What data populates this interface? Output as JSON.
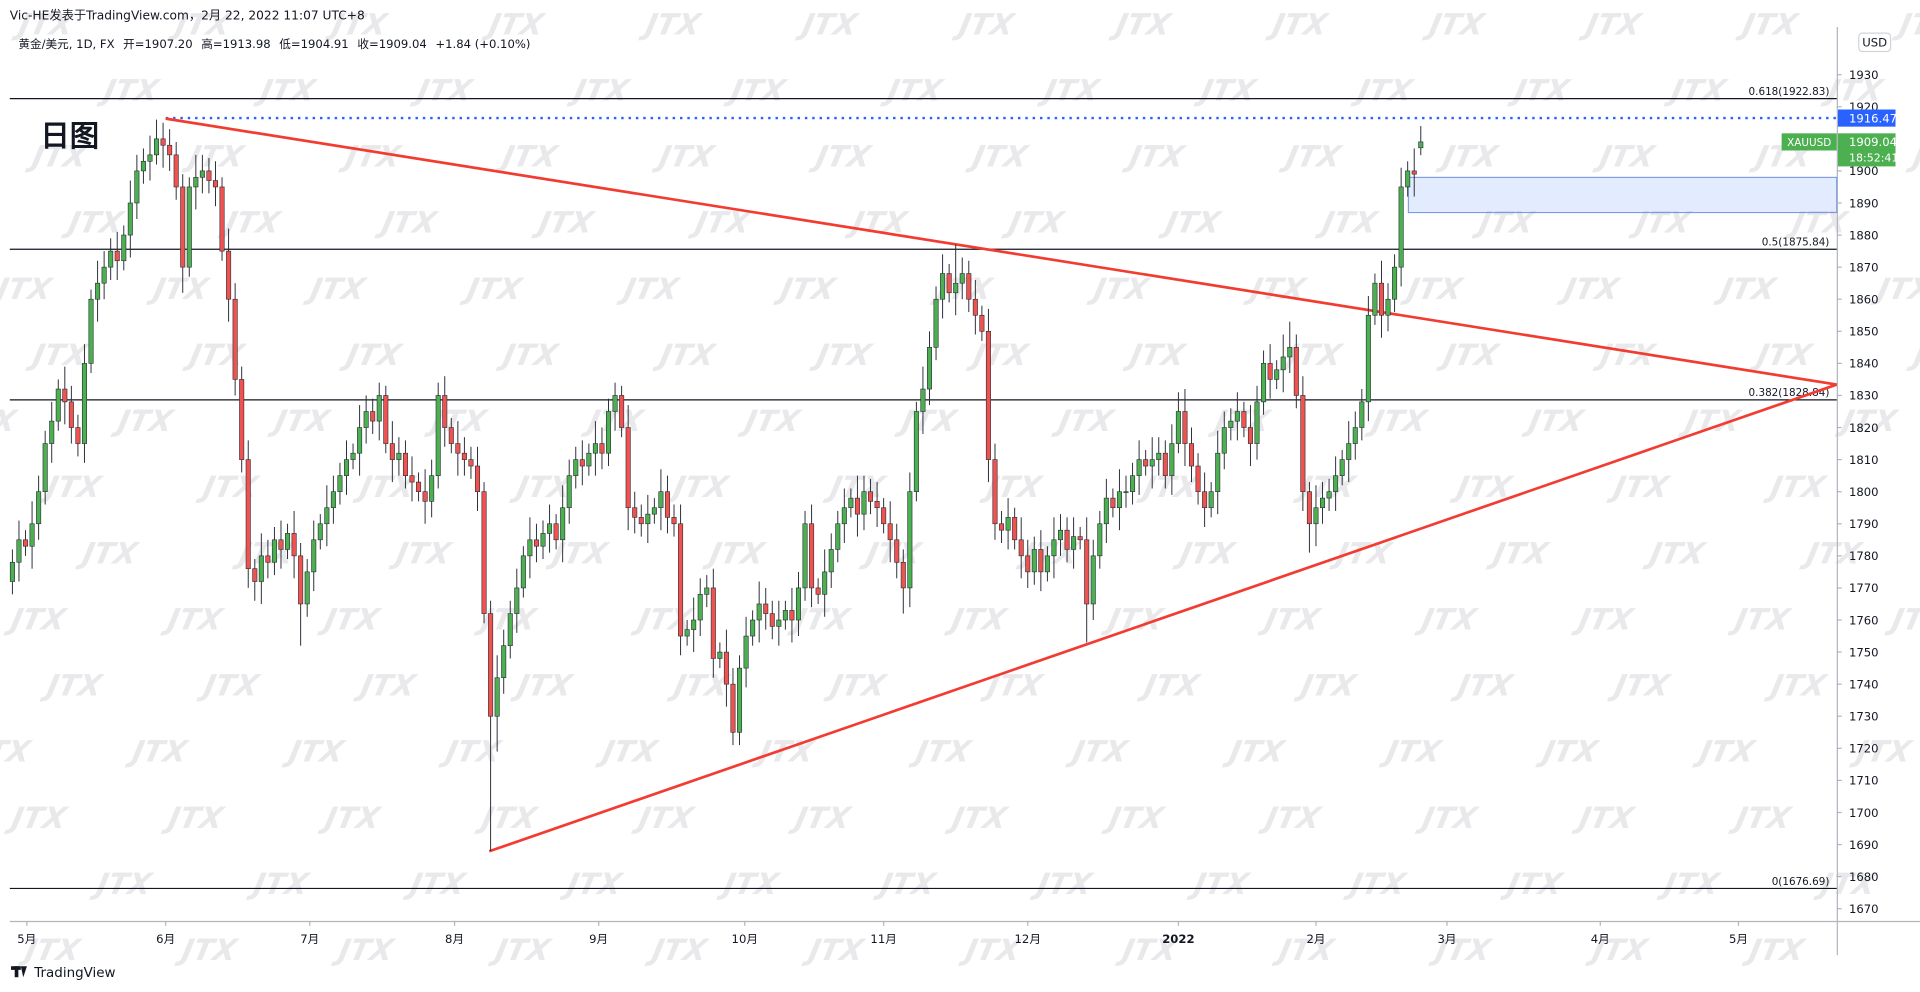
{
  "header": "Vic-HE发表于TradingView.com，2月 22, 2022 11:07 UTC+8",
  "chart_data": {
    "type": "candlestick",
    "legend": {
      "symbol": "黄金/美元, 1D, FX",
      "open": "开=1907.20",
      "high": "高=1913.98",
      "low": "低=1904.91",
      "close": "收=1909.04",
      "change": "+1.84 (+0.10%)"
    },
    "annotation": "日图",
    "up_color": "#4caf50",
    "down_color": "#ef5350",
    "ohlc": [
      [
        1772,
        1782,
        1768,
        1778
      ],
      [
        1778,
        1791,
        1772,
        1785
      ],
      [
        1785,
        1788,
        1780,
        1783
      ],
      [
        1783,
        1797,
        1776,
        1790
      ],
      [
        1790,
        1805,
        1785,
        1800
      ],
      [
        1800,
        1819,
        1796,
        1815
      ],
      [
        1815,
        1828,
        1809,
        1822
      ],
      [
        1822,
        1835,
        1819,
        1832
      ],
      [
        1832,
        1839,
        1821,
        1828
      ],
      [
        1828,
        1833,
        1815,
        1820
      ],
      [
        1820,
        1824,
        1811,
        1815
      ],
      [
        1815,
        1846,
        1809,
        1840
      ],
      [
        1840,
        1863,
        1837,
        1860
      ],
      [
        1860,
        1872,
        1853,
        1865
      ],
      [
        1865,
        1875,
        1860,
        1870
      ],
      [
        1870,
        1879,
        1866,
        1875
      ],
      [
        1875,
        1881,
        1866,
        1872
      ],
      [
        1872,
        1883,
        1869,
        1880
      ],
      [
        1880,
        1897,
        1873,
        1890
      ],
      [
        1890,
        1905,
        1885,
        1900
      ],
      [
        1900,
        1907,
        1896,
        1903
      ],
      [
        1903,
        1911,
        1897,
        1905
      ],
      [
        1905,
        1916,
        1902,
        1910
      ],
      [
        1910,
        1915,
        1901,
        1908
      ],
      [
        1908,
        1913,
        1900,
        1905
      ],
      [
        1905,
        1909,
        1891,
        1895
      ],
      [
        1895,
        1899,
        1862,
        1870
      ],
      [
        1870,
        1898,
        1867,
        1895
      ],
      [
        1895,
        1905,
        1888,
        1898
      ],
      [
        1898,
        1905,
        1893,
        1900
      ],
      [
        1900,
        1904,
        1893,
        1897
      ],
      [
        1897,
        1903,
        1889,
        1895
      ],
      [
        1895,
        1898,
        1872,
        1875
      ],
      [
        1875,
        1882,
        1853,
        1860
      ],
      [
        1860,
        1865,
        1830,
        1835
      ],
      [
        1835,
        1839,
        1806,
        1810
      ],
      [
        1810,
        1816,
        1770,
        1776
      ],
      [
        1776,
        1779,
        1766,
        1772
      ],
      [
        1772,
        1787,
        1765,
        1780
      ],
      [
        1780,
        1785,
        1773,
        1778
      ],
      [
        1778,
        1789,
        1774,
        1785
      ],
      [
        1785,
        1791,
        1776,
        1782
      ],
      [
        1782,
        1790,
        1779,
        1787
      ],
      [
        1787,
        1794,
        1773,
        1780
      ],
      [
        1780,
        1784,
        1752,
        1765
      ],
      [
        1765,
        1779,
        1761,
        1775
      ],
      [
        1775,
        1791,
        1769,
        1785
      ],
      [
        1785,
        1793,
        1782,
        1790
      ],
      [
        1790,
        1802,
        1783,
        1795
      ],
      [
        1795,
        1805,
        1790,
        1800
      ],
      [
        1800,
        1809,
        1796,
        1805
      ],
      [
        1805,
        1816,
        1799,
        1810
      ],
      [
        1810,
        1815,
        1807,
        1812
      ],
      [
        1812,
        1827,
        1805,
        1820
      ],
      [
        1820,
        1830,
        1815,
        1825
      ],
      [
        1825,
        1829,
        1818,
        1822
      ],
      [
        1822,
        1834,
        1816,
        1830
      ],
      [
        1830,
        1833,
        1812,
        1815
      ],
      [
        1815,
        1822,
        1803,
        1810
      ],
      [
        1810,
        1817,
        1805,
        1812
      ],
      [
        1812,
        1816,
        1801,
        1805
      ],
      [
        1805,
        1811,
        1797,
        1803
      ],
      [
        1803,
        1806,
        1797,
        1800
      ],
      [
        1800,
        1807,
        1790,
        1797
      ],
      [
        1797,
        1810,
        1792,
        1805
      ],
      [
        1805,
        1834,
        1801,
        1830
      ],
      [
        1830,
        1836,
        1814,
        1820
      ],
      [
        1820,
        1823,
        1812,
        1815
      ],
      [
        1815,
        1822,
        1805,
        1812
      ],
      [
        1812,
        1817,
        1805,
        1810
      ],
      [
        1810,
        1814,
        1804,
        1808
      ],
      [
        1808,
        1814,
        1794,
        1800
      ],
      [
        1800,
        1803,
        1759,
        1762
      ],
      [
        1762,
        1766,
        1688,
        1730
      ],
      [
        1730,
        1749,
        1719,
        1742
      ],
      [
        1742,
        1757,
        1737,
        1752
      ],
      [
        1752,
        1766,
        1748,
        1762
      ],
      [
        1762,
        1776,
        1756,
        1770
      ],
      [
        1770,
        1783,
        1767,
        1780
      ],
      [
        1780,
        1792,
        1773,
        1785
      ],
      [
        1785,
        1790,
        1778,
        1783
      ],
      [
        1783,
        1791,
        1779,
        1787
      ],
      [
        1787,
        1796,
        1781,
        1790
      ],
      [
        1790,
        1793,
        1782,
        1785
      ],
      [
        1785,
        1802,
        1778,
        1795
      ],
      [
        1795,
        1810,
        1790,
        1805
      ],
      [
        1805,
        1814,
        1801,
        1810
      ],
      [
        1810,
        1816,
        1802,
        1808
      ],
      [
        1808,
        1815,
        1805,
        1812
      ],
      [
        1812,
        1822,
        1805,
        1815
      ],
      [
        1815,
        1820,
        1807,
        1812
      ],
      [
        1812,
        1829,
        1808,
        1825
      ],
      [
        1825,
        1834,
        1819,
        1830
      ],
      [
        1830,
        1833,
        1817,
        1820
      ],
      [
        1820,
        1827,
        1788,
        1795
      ],
      [
        1795,
        1800,
        1787,
        1792
      ],
      [
        1792,
        1796,
        1786,
        1790
      ],
      [
        1790,
        1799,
        1784,
        1793
      ],
      [
        1793,
        1798,
        1790,
        1795
      ],
      [
        1795,
        1807,
        1788,
        1800
      ],
      [
        1800,
        1805,
        1787,
        1792
      ],
      [
        1792,
        1796,
        1786,
        1790
      ],
      [
        1790,
        1796,
        1749,
        1755
      ],
      [
        1755,
        1760,
        1752,
        1757
      ],
      [
        1757,
        1767,
        1750,
        1760
      ],
      [
        1760,
        1773,
        1755,
        1768
      ],
      [
        1768,
        1774,
        1764,
        1770
      ],
      [
        1770,
        1776,
        1742,
        1748
      ],
      [
        1748,
        1753,
        1745,
        1750
      ],
      [
        1750,
        1757,
        1733,
        1740
      ],
      [
        1740,
        1745,
        1721,
        1725
      ],
      [
        1725,
        1749,
        1721,
        1745
      ],
      [
        1745,
        1761,
        1739,
        1755
      ],
      [
        1755,
        1763,
        1752,
        1760
      ],
      [
        1760,
        1772,
        1753,
        1765
      ],
      [
        1765,
        1770,
        1757,
        1762
      ],
      [
        1762,
        1766,
        1754,
        1758
      ],
      [
        1758,
        1766,
        1752,
        1760
      ],
      [
        1760,
        1766,
        1757,
        1763
      ],
      [
        1763,
        1770,
        1753,
        1760
      ],
      [
        1760,
        1775,
        1755,
        1770
      ],
      [
        1770,
        1794,
        1766,
        1790
      ],
      [
        1790,
        1796,
        1764,
        1770
      ],
      [
        1770,
        1773,
        1765,
        1768
      ],
      [
        1768,
        1782,
        1761,
        1775
      ],
      [
        1775,
        1787,
        1770,
        1782
      ],
      [
        1782,
        1794,
        1778,
        1790
      ],
      [
        1790,
        1801,
        1784,
        1795
      ],
      [
        1795,
        1801,
        1792,
        1798
      ],
      [
        1798,
        1805,
        1786,
        1793
      ],
      [
        1793,
        1805,
        1788,
        1800
      ],
      [
        1800,
        1804,
        1793,
        1797
      ],
      [
        1797,
        1803,
        1789,
        1795
      ],
      [
        1795,
        1798,
        1787,
        1790
      ],
      [
        1790,
        1797,
        1778,
        1785
      ],
      [
        1785,
        1790,
        1773,
        1778
      ],
      [
        1778,
        1782,
        1762,
        1770
      ],
      [
        1770,
        1806,
        1764,
        1800
      ],
      [
        1800,
        1828,
        1797,
        1825
      ],
      [
        1825,
        1839,
        1818,
        1832
      ],
      [
        1832,
        1850,
        1827,
        1845
      ],
      [
        1845,
        1864,
        1841,
        1860
      ],
      [
        1860,
        1874,
        1854,
        1868
      ],
      [
        1868,
        1871,
        1859,
        1862
      ],
      [
        1862,
        1877,
        1855,
        1865
      ],
      [
        1865,
        1873,
        1860,
        1868
      ],
      [
        1868,
        1872,
        1856,
        1860
      ],
      [
        1860,
        1866,
        1849,
        1855
      ],
      [
        1855,
        1858,
        1847,
        1850
      ],
      [
        1850,
        1857,
        1803,
        1810
      ],
      [
        1810,
        1815,
        1785,
        1790
      ],
      [
        1790,
        1794,
        1784,
        1788
      ],
      [
        1788,
        1798,
        1782,
        1792
      ],
      [
        1792,
        1795,
        1782,
        1785
      ],
      [
        1785,
        1792,
        1773,
        1780
      ],
      [
        1780,
        1785,
        1770,
        1775
      ],
      [
        1775,
        1786,
        1771,
        1782
      ],
      [
        1782,
        1788,
        1769,
        1775
      ],
      [
        1775,
        1783,
        1772,
        1780
      ],
      [
        1780,
        1792,
        1773,
        1785
      ],
      [
        1785,
        1793,
        1780,
        1788
      ],
      [
        1788,
        1792,
        1778,
        1782
      ],
      [
        1782,
        1792,
        1776,
        1786
      ],
      [
        1786,
        1789,
        1782,
        1785
      ],
      [
        1785,
        1792,
        1753,
        1765
      ],
      [
        1765,
        1785,
        1760,
        1780
      ],
      [
        1780,
        1794,
        1776,
        1790
      ],
      [
        1790,
        1804,
        1784,
        1798
      ],
      [
        1798,
        1801,
        1792,
        1795
      ],
      [
        1795,
        1807,
        1788,
        1800
      ],
      [
        1800,
        1805,
        1795,
        1800
      ],
      [
        1800,
        1809,
        1796,
        1805
      ],
      [
        1805,
        1816,
        1799,
        1810
      ],
      [
        1810,
        1813,
        1805,
        1808
      ],
      [
        1808,
        1817,
        1801,
        1810
      ],
      [
        1810,
        1817,
        1805,
        1812
      ],
      [
        1812,
        1816,
        1801,
        1805
      ],
      [
        1805,
        1821,
        1799,
        1815
      ],
      [
        1815,
        1831,
        1812,
        1825
      ],
      [
        1825,
        1832,
        1808,
        1815
      ],
      [
        1815,
        1820,
        1803,
        1808
      ],
      [
        1808,
        1812,
        1796,
        1800
      ],
      [
        1800,
        1806,
        1789,
        1795
      ],
      [
        1795,
        1803,
        1792,
        1800
      ],
      [
        1800,
        1819,
        1793,
        1812
      ],
      [
        1812,
        1825,
        1807,
        1820
      ],
      [
        1820,
        1826,
        1816,
        1822
      ],
      [
        1822,
        1831,
        1816,
        1825
      ],
      [
        1825,
        1828,
        1817,
        1820
      ],
      [
        1820,
        1827,
        1808,
        1815
      ],
      [
        1815,
        1833,
        1810,
        1828
      ],
      [
        1828,
        1844,
        1824,
        1840
      ],
      [
        1840,
        1846,
        1829,
        1835
      ],
      [
        1835,
        1841,
        1832,
        1838
      ],
      [
        1838,
        1849,
        1831,
        1842
      ],
      [
        1842,
        1853,
        1837,
        1845
      ],
      [
        1845,
        1849,
        1826,
        1830
      ],
      [
        1830,
        1836,
        1794,
        1800
      ],
      [
        1800,
        1803,
        1781,
        1790
      ],
      [
        1790,
        1802,
        1783,
        1795
      ],
      [
        1795,
        1803,
        1790,
        1798
      ],
      [
        1798,
        1804,
        1794,
        1800
      ],
      [
        1800,
        1811,
        1794,
        1805
      ],
      [
        1805,
        1813,
        1802,
        1810
      ],
      [
        1810,
        1822,
        1803,
        1815
      ],
      [
        1815,
        1825,
        1810,
        1820
      ],
      [
        1820,
        1832,
        1816,
        1828
      ],
      [
        1828,
        1861,
        1822,
        1855
      ],
      [
        1855,
        1868,
        1852,
        1865
      ],
      [
        1865,
        1872,
        1848,
        1855
      ],
      [
        1855,
        1865,
        1850,
        1860
      ],
      [
        1860,
        1874,
        1856,
        1870
      ],
      [
        1870,
        1901,
        1864,
        1895
      ],
      [
        1895,
        1903,
        1892,
        1900
      ],
      [
        1900,
        1907,
        1892,
        1899
      ],
      [
        1907.2,
        1913.98,
        1904.91,
        1909.04
      ]
    ],
    "xlim": [
      -0.4,
      278.5
    ],
    "xticks": [
      {
        "value": 2.2,
        "label": "5月"
      },
      {
        "value": 23.4,
        "label": "6月"
      },
      {
        "value": 45.4,
        "label": "7月"
      },
      {
        "value": 67.5,
        "label": "8月"
      },
      {
        "value": 89.5,
        "label": "9月"
      },
      {
        "value": 111.8,
        "label": "10月"
      },
      {
        "value": 133,
        "label": "11月"
      },
      {
        "value": 155,
        "label": "12月"
      },
      {
        "value": 178,
        "label": "2022"
      },
      {
        "value": 199,
        "label": "2月"
      },
      {
        "value": 219,
        "label": "3月"
      },
      {
        "value": 242.4,
        "label": "4月"
      },
      {
        "value": 263.5,
        "label": "5月"
      }
    ],
    "ylim": [
      1666.2,
      1950.2
    ],
    "yticks": [
      1670,
      1680,
      1690,
      1700,
      1710,
      1720,
      1730,
      1740,
      1750,
      1760,
      1770,
      1780,
      1790,
      1800,
      1810,
      1820,
      1830,
      1840,
      1850,
      1860,
      1870,
      1880,
      1890,
      1900,
      1910,
      1920,
      1930
    ],
    "currency": "USD",
    "fib_levels": [
      {
        "value": 1922.83,
        "label": "0.618(1922.83)"
      },
      {
        "value": 1875.84,
        "label": "0.5(1875.84)"
      },
      {
        "value": 1828.84,
        "label": "0.382(1828.84)"
      },
      {
        "value": 1676.69,
        "label": "0(1676.69)"
      }
    ],
    "price_line": {
      "value": 1916.47,
      "start": 23.4,
      "color": "#2962ff"
    },
    "last_price": {
      "symbol": "XAUUSD",
      "value": 1909.04,
      "countdown": "18:52:41",
      "color": "#4caf50"
    },
    "zone": {
      "x": [
        213.1,
        278.5
      ],
      "y": [
        1887,
        1898
      ]
    },
    "trendlines": [
      {
        "x": [
          23.4,
          278.5
        ],
        "y": [
          1916.3,
          1833.4
        ]
      },
      {
        "x": [
          72.8,
          278.5
        ],
        "y": [
          1687.9,
          1833.4
        ]
      }
    ],
    "trendline_color": "#f23c32",
    "watermark": "JTX"
  },
  "footer": "TradingView"
}
